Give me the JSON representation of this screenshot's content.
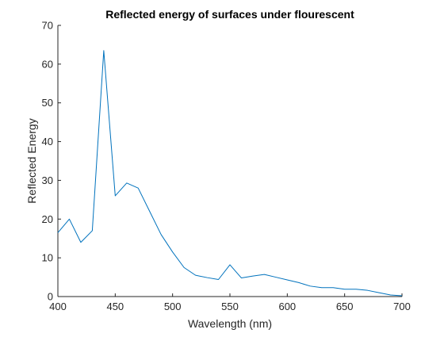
{
  "chart_data": {
    "type": "line",
    "title": "Reflected energy of surfaces under flourescent",
    "xlabel": "Wavelength (nm)",
    "ylabel": "Reflected Energy",
    "xlim": [
      400,
      700
    ],
    "ylim": [
      0,
      70
    ],
    "xticks": [
      "400",
      "450",
      "500",
      "550",
      "600",
      "650",
      "700"
    ],
    "yticks": [
      "0",
      "10",
      "20",
      "30",
      "40",
      "50",
      "60",
      "70"
    ],
    "grid": false,
    "line_color": "#0072BD",
    "series": [
      {
        "x": [
          400,
          410,
          420,
          430,
          440,
          450,
          460,
          470,
          480,
          490,
          500,
          510,
          520,
          530,
          540,
          550,
          560,
          570,
          580,
          590,
          600,
          610,
          620,
          630,
          640,
          650,
          660,
          670,
          680,
          690,
          700
        ],
        "y": [
          16.5,
          20.0,
          14.0,
          17.0,
          63.5,
          26.0,
          29.3,
          28.0,
          22.0,
          16.0,
          11.5,
          7.5,
          5.5,
          4.9,
          4.4,
          8.2,
          4.8,
          5.3,
          5.7,
          5.0,
          4.3,
          3.6,
          2.7,
          2.3,
          2.3,
          1.9,
          1.9,
          1.6,
          1.0,
          0.4,
          0.2
        ]
      }
    ]
  }
}
